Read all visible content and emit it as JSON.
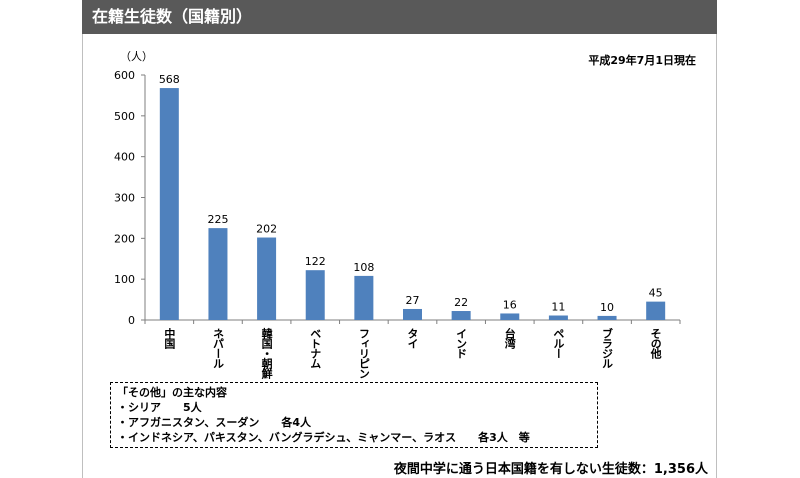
{
  "header": {
    "title": "在籍生徒数（国籍別）"
  },
  "date_note": "平成29年7月1日現在",
  "unit_label": "（人）",
  "chart_data": {
    "type": "bar",
    "categories": [
      "中国",
      "ネパール",
      "韓国・朝鮮",
      "ベトナム",
      "フィリピン",
      "タイ",
      "インド",
      "台湾",
      "ペルー",
      "ブラジル",
      "その他"
    ],
    "values": [
      568,
      225,
      202,
      122,
      108,
      27,
      22,
      16,
      11,
      10,
      45
    ],
    "ylim": [
      0,
      600
    ],
    "yticks": [
      0,
      100,
      200,
      300,
      400,
      500,
      600
    ],
    "ylabel": "（人）",
    "bar_color": "#4f81bd",
    "grid": false
  },
  "notes": {
    "title": "「その他」の主な内容",
    "lines": [
      "・シリア　　5人",
      "・アフガニスタン、スーダン　　各4人",
      "・インドネシア、パキスタン、バングラデシュ、ミャンマー、ラオス　　各3人　等"
    ]
  },
  "summary": "夜間中学に通う日本国籍を有しない生徒数：1,356人"
}
